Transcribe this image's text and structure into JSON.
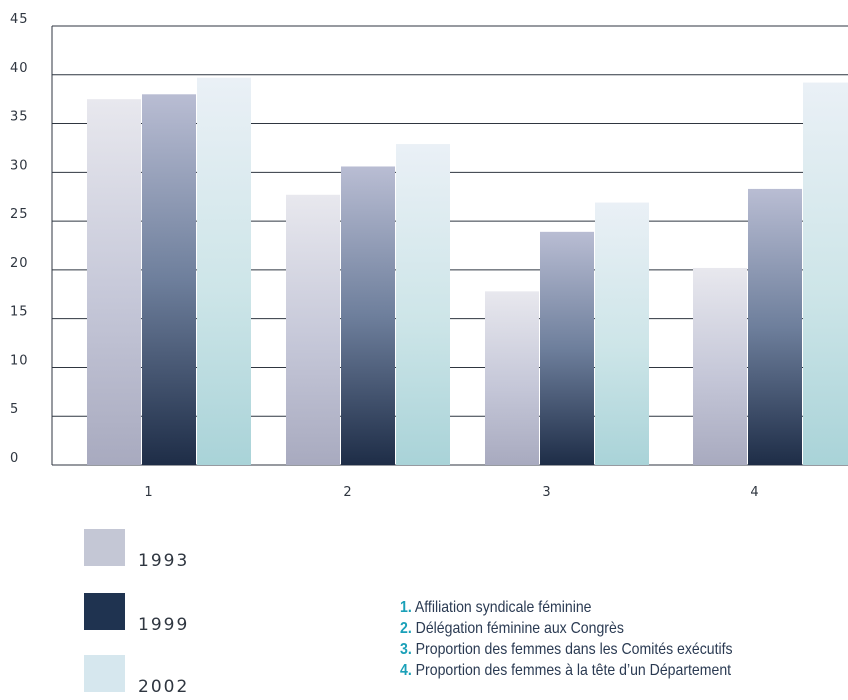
{
  "chart_data": {
    "type": "bar",
    "categories": [
      "1",
      "2",
      "3",
      "4"
    ],
    "series": [
      {
        "name": "1993",
        "values": [
          37.5,
          27.7,
          17.8,
          20.2
        ]
      },
      {
        "name": "1999",
        "values": [
          38.0,
          30.6,
          23.9,
          28.3
        ]
      },
      {
        "name": "2002",
        "values": [
          39.7,
          32.9,
          26.9,
          39.2
        ]
      }
    ],
    "ylim": [
      0,
      45
    ],
    "yticks": [
      "0",
      "5",
      "10",
      "15",
      "20",
      "25",
      "30",
      "35",
      "40",
      "45"
    ],
    "grid": true,
    "legend_position": "bottom-left"
  },
  "colors": {
    "s1993_top": "#e8e8ee",
    "s1993_mid": "#c5c7d8",
    "s1993_bottom": "#a8aabf",
    "s1999_top": "#b9bdd3",
    "s1999_mid": "#6e7f9c",
    "s1999_bottom": "#1e2d47",
    "s2002_top": "#eaf0f6",
    "s2002_mid": "#cde5e8",
    "s2002_bottom": "#a9d3d8",
    "legend_1993": "#c4c7d5",
    "legend_1999": "#1f3350",
    "legend_2002": "#d6e7ee",
    "accent_number": "#1aa0b8"
  },
  "legend": [
    {
      "label": "1993",
      "icon": "swatch-1993"
    },
    {
      "label": "1999",
      "icon": "swatch-1999"
    },
    {
      "label": "2002",
      "icon": "swatch-2002"
    }
  ],
  "notes": [
    {
      "num": "1.",
      "text": "Affiliation syndicale féminine"
    },
    {
      "num": "2.",
      "text": "Délégation féminine aux Congrès"
    },
    {
      "num": "3.",
      "text": "Proportion des femmes dans les Comités exécutifs"
    },
    {
      "num": "4.",
      "text": "Proportion des femmes à la tête d’un Département"
    }
  ]
}
